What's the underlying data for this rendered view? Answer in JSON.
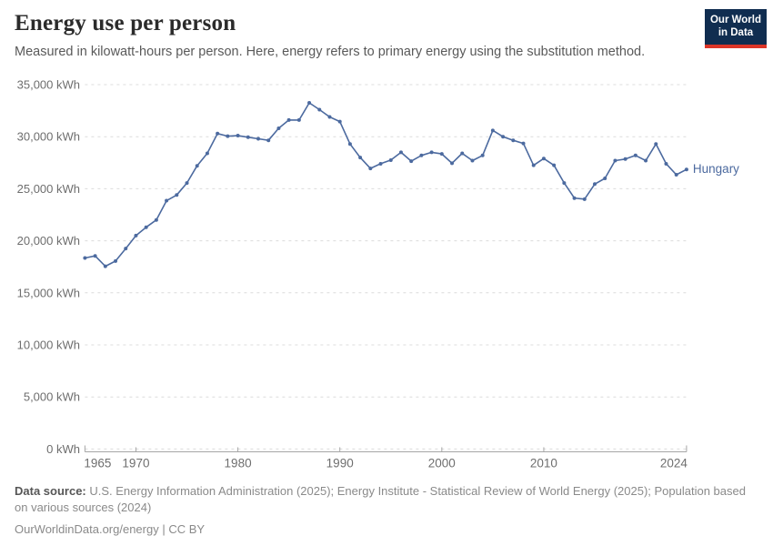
{
  "header": {
    "title": "Energy use per person",
    "subtitle": "Measured in kilowatt-hours per person. Here, energy refers to primary energy using the substitution method.",
    "logo": {
      "line1": "Our World",
      "line2": "in Data",
      "bg_color": "#102d50",
      "stripe_color": "#dc3528"
    }
  },
  "chart_data": {
    "type": "line",
    "title": "Energy use per person",
    "ylabel": "kWh",
    "xlabel": "",
    "grid": "dashed-horizontal",
    "legend_position": "end-of-line",
    "series": [
      {
        "name": "Hungary",
        "color": "#4c6a9f",
        "x": [
          1965,
          1966,
          1967,
          1968,
          1969,
          1970,
          1971,
          1972,
          1973,
          1974,
          1975,
          1976,
          1977,
          1978,
          1979,
          1980,
          1981,
          1982,
          1983,
          1984,
          1985,
          1986,
          1987,
          1988,
          1989,
          1990,
          1991,
          1992,
          1993,
          1994,
          1995,
          1996,
          1997,
          1998,
          1999,
          2000,
          2001,
          2002,
          2003,
          2004,
          2005,
          2006,
          2007,
          2008,
          2009,
          2010,
          2011,
          2012,
          2013,
          2014,
          2015,
          2016,
          2017,
          2018,
          2019,
          2020,
          2021,
          2022,
          2023,
          2024
        ],
        "values": [
          18350,
          18550,
          17550,
          18050,
          19250,
          20500,
          21300,
          22000,
          23850,
          24400,
          25550,
          27200,
          28400,
          30300,
          30050,
          30100,
          29950,
          29800,
          29650,
          30800,
          31600,
          31600,
          33250,
          32600,
          31900,
          31450,
          29300,
          28000,
          26950,
          27400,
          27750,
          28500,
          27650,
          28200,
          28500,
          28350,
          27450,
          28400,
          27700,
          28200,
          30600,
          30000,
          29650,
          29350,
          27250,
          27900,
          27250,
          25550,
          24100,
          24000,
          25450,
          26000,
          27700,
          27850,
          28200,
          27700,
          29300,
          27400,
          26350,
          26850
        ]
      }
    ],
    "xlim": [
      1965,
      2024
    ],
    "ylim": [
      0,
      35000
    ],
    "xticks": [
      1965,
      1970,
      1980,
      1990,
      2000,
      2010,
      2024
    ],
    "yticks": [
      0,
      5000,
      10000,
      15000,
      20000,
      25000,
      30000,
      35000
    ],
    "ytick_labels": [
      "0 kWh",
      "5,000 kWh",
      "10,000 kWh",
      "15,000 kWh",
      "20,000 kWh",
      "25,000 kWh",
      "30,000 kWh",
      "35,000 kWh"
    ],
    "end_label": "Hungary",
    "colors": {
      "grid": "#dcdcdc",
      "axis": "#a5a5a5",
      "tick_text": "#6e6e6e"
    }
  },
  "footer": {
    "datasource_label": "Data source:",
    "datasource_text": " U.S. Energy Information Administration (2025); Energy Institute - Statistical Review of World Energy (2025); Population based on various sources (2024)",
    "link_text": "OurWorldinData.org/energy | CC BY"
  }
}
